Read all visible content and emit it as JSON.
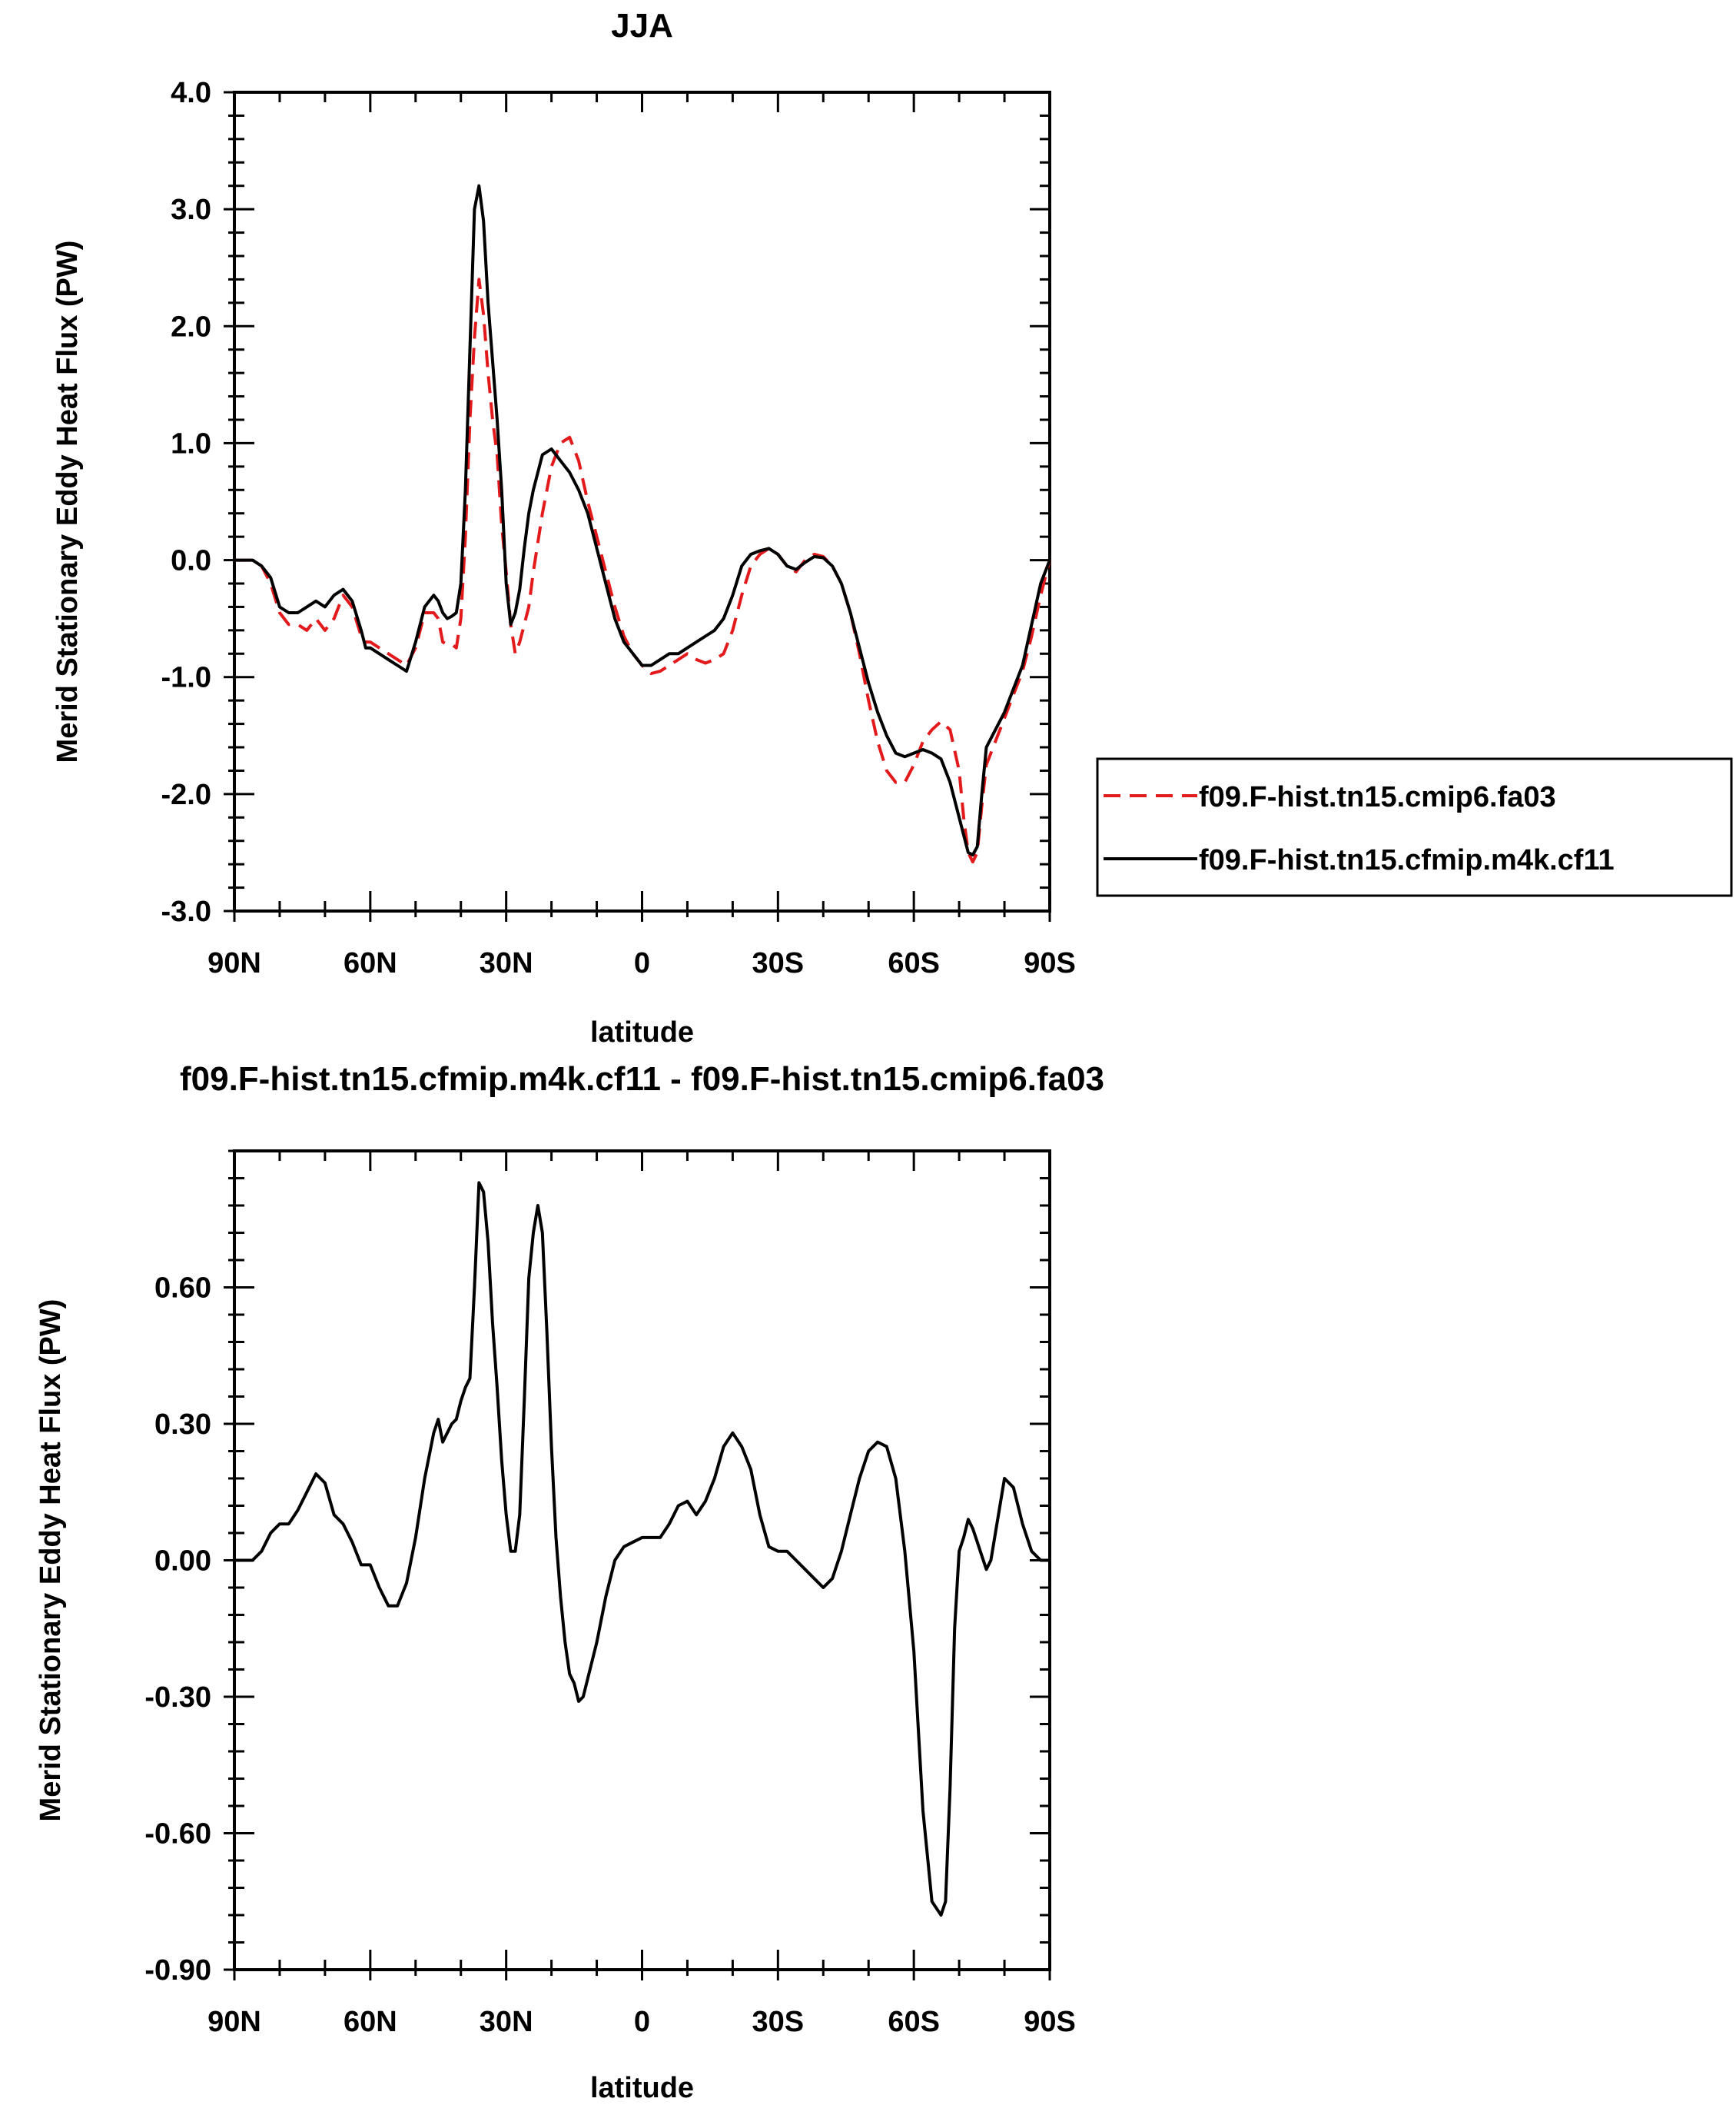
{
  "chart_data": [
    {
      "type": "line",
      "title": "JJA",
      "xlabel": "latitude",
      "ylabel": "Merid Stationary Eddy Heat Flux (PW)",
      "xlim": [
        90,
        -90
      ],
      "ylim": [
        -3.0,
        4.0
      ],
      "yticks": [
        -3.0,
        -2.0,
        -1.0,
        0.0,
        1.0,
        2.0,
        3.0,
        4.0
      ],
      "yticklabels": [
        "-3.0",
        "-2.0",
        "-1.0",
        "0.0",
        "1.0",
        "2.0",
        "3.0",
        "4.0"
      ],
      "xticks": [
        90,
        60,
        30,
        0,
        -30,
        -60,
        -90
      ],
      "xticklabels": [
        "90N",
        "60N",
        "30N",
        "0",
        "30S",
        "60S",
        "90S"
      ],
      "grid": false,
      "legend_position": "outside-right",
      "series": [
        {
          "name": "f09.F-hist.tn15.cmip6.fa03",
          "color": "#e31a1c",
          "dash": "dashed",
          "x": [
            90,
            86,
            84,
            82,
            80,
            78,
            76,
            74,
            72,
            70,
            68,
            66,
            64,
            62,
            61,
            60,
            58,
            56,
            54,
            52,
            50,
            48,
            46,
            45,
            44,
            43,
            42,
            41,
            40,
            39,
            38,
            37,
            36,
            35,
            34,
            33,
            32,
            31,
            30,
            29,
            28,
            27,
            26,
            25,
            24,
            22,
            20,
            18,
            16,
            14,
            12,
            10,
            8,
            6,
            4,
            2,
            0,
            -2,
            -4,
            -6,
            -8,
            -10,
            -12,
            -14,
            -16,
            -18,
            -20,
            -22,
            -24,
            -26,
            -28,
            -30,
            -32,
            -34,
            -36,
            -38,
            -40,
            -42,
            -44,
            -46,
            -48,
            -50,
            -52,
            -54,
            -56,
            -58,
            -60,
            -62,
            -64,
            -66,
            -68,
            -70,
            -71,
            -72,
            -73,
            -74,
            -75,
            -76,
            -78,
            -80,
            -82,
            -84,
            -86,
            -88,
            -90
          ],
          "y": [
            0.0,
            0.0,
            -0.05,
            -0.2,
            -0.45,
            -0.55,
            -0.55,
            -0.6,
            -0.5,
            -0.6,
            -0.5,
            -0.3,
            -0.4,
            -0.65,
            -0.7,
            -0.7,
            -0.75,
            -0.8,
            -0.85,
            -0.9,
            -0.75,
            -0.45,
            -0.45,
            -0.5,
            -0.7,
            -0.72,
            -0.72,
            -0.75,
            -0.5,
            0.2,
            1.2,
            1.9,
            2.4,
            2.1,
            1.6,
            1.2,
            0.9,
            0.3,
            -0.1,
            -0.55,
            -0.8,
            -0.7,
            -0.55,
            -0.4,
            -0.1,
            0.4,
            0.8,
            1.0,
            1.05,
            0.85,
            0.5,
            0.2,
            -0.1,
            -0.4,
            -0.65,
            -0.8,
            -0.9,
            -0.97,
            -0.95,
            -0.9,
            -0.85,
            -0.8,
            -0.85,
            -0.88,
            -0.85,
            -0.8,
            -0.6,
            -0.3,
            -0.05,
            0.05,
            0.1,
            0.05,
            -0.05,
            -0.1,
            0.0,
            0.05,
            0.03,
            -0.05,
            -0.2,
            -0.45,
            -0.8,
            -1.2,
            -1.55,
            -1.8,
            -1.9,
            -1.9,
            -1.75,
            -1.55,
            -1.45,
            -1.38,
            -1.45,
            -1.8,
            -2.2,
            -2.5,
            -2.58,
            -2.5,
            -2.1,
            -1.75,
            -1.55,
            -1.35,
            -1.15,
            -0.95,
            -0.65,
            -0.3,
            0.0
          ]
        },
        {
          "name": "f09.F-hist.tn15.cfmip.m4k.cf11",
          "color": "#000000",
          "dash": "solid",
          "x": [
            90,
            86,
            84,
            82,
            80,
            78,
            76,
            74,
            72,
            70,
            68,
            66,
            64,
            62,
            61,
            60,
            58,
            56,
            54,
            52,
            50,
            48,
            46,
            45,
            44,
            43,
            42,
            41,
            40,
            39,
            38,
            37,
            36,
            35,
            34,
            33,
            32,
            31,
            30,
            29,
            28,
            27,
            26,
            25,
            24,
            22,
            20,
            18,
            16,
            14,
            12,
            10,
            8,
            6,
            4,
            2,
            0,
            -2,
            -4,
            -6,
            -8,
            -10,
            -12,
            -14,
            -16,
            -18,
            -20,
            -22,
            -24,
            -26,
            -28,
            -30,
            -32,
            -34,
            -36,
            -38,
            -40,
            -42,
            -44,
            -46,
            -48,
            -50,
            -52,
            -54,
            -56,
            -58,
            -60,
            -62,
            -64,
            -66,
            -68,
            -70,
            -71,
            -72,
            -73,
            -74,
            -75,
            -76,
            -78,
            -80,
            -82,
            -84,
            -86,
            -88,
            -90
          ],
          "y": [
            0.0,
            0.0,
            -0.05,
            -0.15,
            -0.4,
            -0.45,
            -0.45,
            -0.4,
            -0.35,
            -0.4,
            -0.3,
            -0.25,
            -0.35,
            -0.6,
            -0.75,
            -0.75,
            -0.8,
            -0.85,
            -0.9,
            -0.95,
            -0.7,
            -0.4,
            -0.3,
            -0.35,
            -0.45,
            -0.5,
            -0.48,
            -0.45,
            -0.2,
            0.6,
            1.8,
            3.0,
            3.2,
            2.9,
            2.2,
            1.7,
            1.2,
            0.6,
            -0.2,
            -0.55,
            -0.45,
            -0.25,
            0.1,
            0.4,
            0.6,
            0.9,
            0.95,
            0.85,
            0.75,
            0.6,
            0.4,
            0.1,
            -0.2,
            -0.5,
            -0.7,
            -0.8,
            -0.9,
            -0.9,
            -0.85,
            -0.8,
            -0.8,
            -0.75,
            -0.7,
            -0.65,
            -0.6,
            -0.5,
            -0.3,
            -0.05,
            0.05,
            0.08,
            0.1,
            0.05,
            -0.05,
            -0.08,
            -0.02,
            0.03,
            0.02,
            -0.05,
            -0.2,
            -0.45,
            -0.75,
            -1.05,
            -1.3,
            -1.5,
            -1.65,
            -1.68,
            -1.65,
            -1.62,
            -1.65,
            -1.7,
            -1.9,
            -2.2,
            -2.35,
            -2.5,
            -2.52,
            -2.45,
            -2.0,
            -1.6,
            -1.45,
            -1.3,
            -1.1,
            -0.9,
            -0.55,
            -0.2,
            0.0
          ]
        }
      ]
    },
    {
      "type": "line",
      "title": "f09.F-hist.tn15.cfmip.m4k.cf11 - f09.F-hist.tn15.cmip6.fa03",
      "xlabel": "latitude",
      "ylabel": "Merid Stationary Eddy Heat Flux (PW)",
      "xlim": [
        90,
        -90
      ],
      "ylim": [
        -0.9,
        0.9
      ],
      "yticks": [
        -0.9,
        -0.6,
        -0.3,
        0.0,
        0.3,
        0.6
      ],
      "yticklabels": [
        "-0.90",
        "-0.60",
        "-0.30",
        "0.00",
        "0.30",
        "0.60"
      ],
      "xticks": [
        90,
        60,
        30,
        0,
        -30,
        -60,
        -90
      ],
      "xticklabels": [
        "90N",
        "60N",
        "30N",
        "0",
        "30S",
        "60S",
        "90S"
      ],
      "grid": false,
      "series": [
        {
          "color": "#000000",
          "dash": "solid",
          "x": [
            90,
            86,
            84,
            82,
            80,
            78,
            76,
            74,
            72,
            70,
            68,
            66,
            64,
            62,
            60,
            58,
            56,
            54,
            52,
            50,
            48,
            46,
            45,
            44,
            43,
            42,
            41,
            40,
            39,
            38,
            37,
            36,
            35,
            34,
            33,
            32,
            31,
            30,
            29,
            28,
            27,
            26,
            25,
            24,
            23,
            22,
            21,
            20,
            19,
            18,
            17,
            16,
            15,
            14,
            13,
            12,
            11,
            10,
            8,
            6,
            4,
            2,
            0,
            -2,
            -4,
            -6,
            -8,
            -10,
            -12,
            -14,
            -16,
            -18,
            -20,
            -22,
            -24,
            -26,
            -28,
            -30,
            -32,
            -34,
            -36,
            -38,
            -40,
            -42,
            -44,
            -46,
            -48,
            -50,
            -52,
            -54,
            -56,
            -58,
            -60,
            -62,
            -64,
            -66,
            -67,
            -68,
            -69,
            -70,
            -71,
            -72,
            -73,
            -74,
            -75,
            -76,
            -77,
            -78,
            -79,
            -80,
            -82,
            -84,
            -86,
            -88,
            -90
          ],
          "y": [
            0.0,
            0.0,
            0.02,
            0.06,
            0.08,
            0.08,
            0.11,
            0.15,
            0.19,
            0.17,
            0.1,
            0.08,
            0.04,
            -0.01,
            -0.01,
            -0.06,
            -0.1,
            -0.1,
            -0.05,
            0.05,
            0.18,
            0.28,
            0.31,
            0.26,
            0.28,
            0.3,
            0.31,
            0.35,
            0.38,
            0.4,
            0.6,
            0.83,
            0.81,
            0.7,
            0.52,
            0.38,
            0.22,
            0.1,
            0.02,
            0.02,
            0.1,
            0.35,
            0.62,
            0.72,
            0.78,
            0.72,
            0.5,
            0.25,
            0.05,
            -0.08,
            -0.18,
            -0.25,
            -0.27,
            -0.31,
            -0.3,
            -0.26,
            -0.22,
            -0.18,
            -0.08,
            0.0,
            0.03,
            0.04,
            0.05,
            0.05,
            0.05,
            0.08,
            0.12,
            0.13,
            0.1,
            0.13,
            0.18,
            0.25,
            0.28,
            0.25,
            0.2,
            0.1,
            0.03,
            0.02,
            0.02,
            0.0,
            -0.02,
            -0.04,
            -0.06,
            -0.04,
            0.02,
            0.1,
            0.18,
            0.24,
            0.26,
            0.25,
            0.18,
            0.02,
            -0.2,
            -0.55,
            -0.75,
            -0.78,
            -0.75,
            -0.5,
            -0.15,
            0.02,
            0.05,
            0.09,
            0.07,
            0.04,
            0.01,
            -0.02,
            0.0,
            0.06,
            0.12,
            0.18,
            0.16,
            0.08,
            0.02,
            0.0,
            0.0
          ]
        }
      ]
    }
  ]
}
